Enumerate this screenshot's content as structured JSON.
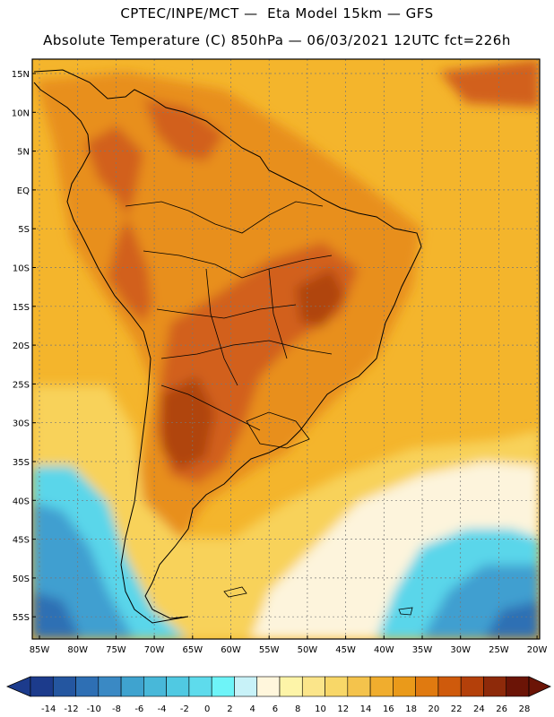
{
  "header": {
    "line1": "CPTEC/INPE/MCT —  Eta Model 15km — GFS",
    "line2": "Absolute Temperature (C) 850hPa — 06/03/2021 12UTC fct=226h"
  },
  "axes": {
    "lat_labels": [
      "15N",
      "10N",
      "5N",
      "EQ",
      "5S",
      "10S",
      "15S",
      "20S",
      "25S",
      "30S",
      "35S",
      "40S",
      "45S",
      "50S",
      "55S"
    ],
    "lon_labels": [
      "85W",
      "80W",
      "75W",
      "70W",
      "65W",
      "60W",
      "55W",
      "50W",
      "45W",
      "40W",
      "35W",
      "30W",
      "25W",
      "20W"
    ]
  },
  "colorbar": {
    "labels": [
      "-14",
      "-12",
      "-10",
      "-8",
      "-6",
      "-4",
      "-2",
      "0",
      "2",
      "4",
      "6",
      "8",
      "10",
      "12",
      "14",
      "16",
      "18",
      "20",
      "22",
      "24",
      "26",
      "28"
    ],
    "colors": [
      "#1c3b8c",
      "#2456a0",
      "#2e6fb4",
      "#3a89c4",
      "#3fa3cf",
      "#48b8d9",
      "#50c9e2",
      "#5edbec",
      "#6ef4f8",
      "#c8f2f8",
      "#fff6dc",
      "#fdf4a8",
      "#fbe58a",
      "#f8d768",
      "#f4c34c",
      "#f0ad2e",
      "#ea9a1a",
      "#e07a10",
      "#cf5a0c",
      "#b4400a",
      "#8e2a0a",
      "#6b1406"
    ]
  },
  "map_colors": {
    "ocean_warm": "#f4b52c",
    "land": "#e88f1c",
    "hot": "#d2601a",
    "hottest": "#b04410",
    "yellow": "#f8d25a",
    "cream": "#fdf4dc",
    "cyan": "#5ad6ea",
    "blue": "#3f9fd0",
    "deep_blue": "#2e6fb4"
  }
}
